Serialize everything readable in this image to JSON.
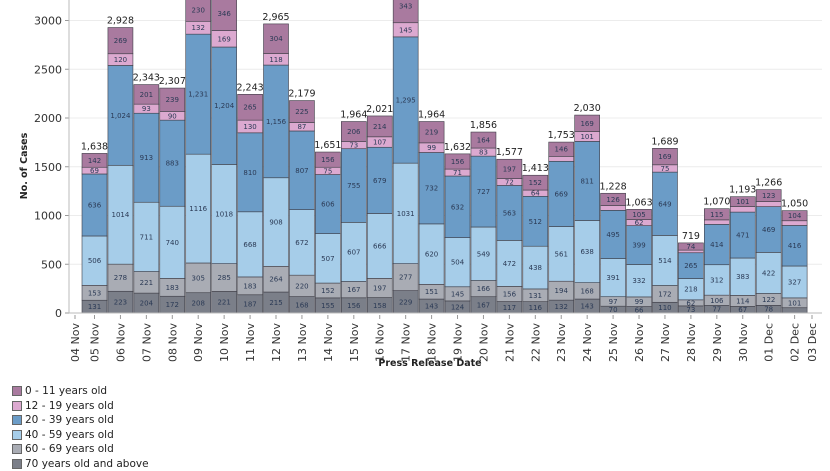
{
  "chart_data": {
    "type": "bar",
    "stacked": true,
    "title": "",
    "xlabel": "Press Release Date",
    "ylabel": "No. of Cases",
    "ylim": [
      0,
      3000
    ],
    "yticks": [
      0,
      500,
      1000,
      1500,
      2000,
      2500,
      3000
    ],
    "grid": true,
    "legend_position": "bottom-left",
    "x_tick_labels": [
      "04 Nov",
      "05 Nov",
      "06 Nov",
      "07 Nov",
      "08 Nov",
      "09 Nov",
      "10 Nov",
      "11 Nov",
      "12 Nov",
      "13 Nov",
      "14 Nov",
      "15 Nov",
      "16 Nov",
      "17 Nov",
      "18 Nov",
      "19 Nov",
      "20 Nov",
      "21 Nov",
      "22 Nov",
      "23 Nov",
      "24 Nov",
      "25 Nov",
      "26 Nov",
      "27 Nov",
      "28 Nov",
      "29 Nov",
      "30 Nov",
      "01 Dec",
      "02 Dec",
      "03 Dec"
    ],
    "categories": [
      "05 Nov",
      "06 Nov",
      "07 Nov",
      "08 Nov",
      "09 Nov",
      "10 Nov",
      "11 Nov",
      "12 Nov",
      "13 Nov",
      "14 Nov",
      "15 Nov",
      "16 Nov",
      "17 Nov",
      "18 Nov",
      "19 Nov",
      "20 Nov",
      "21 Nov",
      "22 Nov",
      "23 Nov",
      "24 Nov",
      "25 Nov",
      "26 Nov",
      "27 Nov",
      "28 Nov",
      "29 Nov",
      "30 Nov",
      "01 Dec",
      "02 Dec"
    ],
    "series": [
      {
        "name": "70 years old and above",
        "color": "#7b7f89",
        "values": [
          131,
          223,
          204,
          172,
          208,
          221,
          187,
          215,
          168,
          155,
          156,
          158,
          229,
          143,
          124,
          167,
          117,
          116,
          132,
          143,
          70,
          66,
          110,
          73,
          77,
          67,
          78,
          54
        ]
      },
      {
        "name": "60 - 69 years old",
        "color": "#a9acb4",
        "values": [
          153,
          278,
          221,
          183,
          305,
          285,
          183,
          264,
          220,
          152,
          167,
          197,
          277,
          151,
          145,
          166,
          156,
          131,
          194,
          168,
          97,
          99,
          172,
          62,
          106,
          114,
          122,
          101
        ]
      },
      {
        "name": "40 - 59 years old",
        "color": "#a6cde9",
        "values": [
          506,
          1014,
          711,
          740,
          1116,
          1018,
          668,
          908,
          672,
          507,
          607,
          666,
          1031,
          620,
          504,
          549,
          472,
          438,
          561,
          638,
          391,
          332,
          514,
          218,
          312,
          383,
          422,
          327
        ]
      },
      {
        "name": "20 - 39 years old",
        "color": "#6b9cc7",
        "values": [
          636,
          1024,
          913,
          883,
          1231,
          1204,
          810,
          1156,
          807,
          606,
          755,
          679,
          1295,
          732,
          632,
          727,
          563,
          512,
          669,
          811,
          495,
          399,
          649,
          265,
          414,
          471,
          469,
          416
        ]
      },
      {
        "name": "12 - 19 years old",
        "color": "#dca9d0",
        "values": [
          69,
          120,
          93,
          90,
          132,
          169,
          130,
          118,
          87,
          75,
          73,
          107,
          145,
          99,
          71,
          83,
          72,
          64,
          51,
          101,
          49,
          62,
          75,
          27,
          46,
          57,
          52,
          48
        ]
      },
      {
        "name": "0 - 11 years old",
        "color": "#a97a9f",
        "values": [
          142,
          269,
          201,
          239,
          230,
          346,
          265,
          304,
          225,
          156,
          206,
          214,
          343,
          219,
          156,
          164,
          197,
          152,
          146,
          169,
          126,
          105,
          169,
          74,
          115,
          101,
          123,
          104
        ]
      }
    ],
    "totals": [
      1638,
      2928,
      2343,
      2307,
      3222,
      3243,
      2243,
      2965,
      2179,
      1651,
      1964,
      2021,
      3320,
      1964,
      1632,
      1856,
      1577,
      1413,
      1753,
      2030,
      1228,
      1063,
      1689,
      719,
      1070,
      1193,
      1266,
      1050
    ],
    "total_labels": [
      "1,638",
      "2,928",
      "2,343",
      "2,307",
      "",
      "",
      "2,243",
      "2,965",
      "2,179",
      "1,651",
      "1,964",
      "2,021",
      "",
      "1,964",
      "1,632",
      "1,856",
      "1,577",
      "1,413",
      "1,753",
      "2,030",
      "1,228",
      "1,063",
      "1,689",
      "719",
      "1,070",
      "1,193",
      "1,266",
      "1,050"
    ]
  },
  "legend": [
    {
      "label": "0 - 11 years old",
      "color": "#a97a9f"
    },
    {
      "label": "12 - 19 years old",
      "color": "#dca9d0"
    },
    {
      "label": "20 - 39 years old",
      "color": "#6b9cc7"
    },
    {
      "label": "40 - 59 years old",
      "color": "#a6cde9"
    },
    {
      "label": "60 - 69 years old",
      "color": "#a9acb4"
    },
    {
      "label": "70 years old and above",
      "color": "#7b7f89"
    }
  ]
}
